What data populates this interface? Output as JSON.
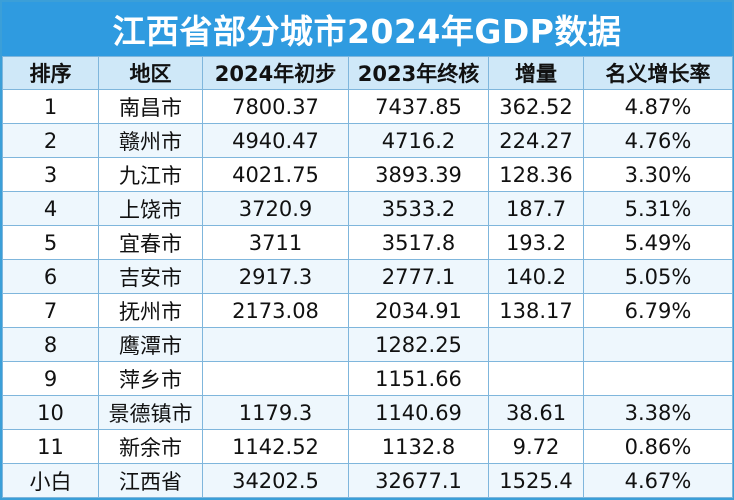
{
  "header": {
    "title": "江西省部分城市2024年GDP数据"
  },
  "table": {
    "columns": [
      "排序",
      "地区",
      "2024年初步",
      "2023年终核",
      "增量",
      "名义增长率"
    ],
    "rows": [
      [
        "1",
        "南昌市",
        "7800.37",
        "7437.85",
        "362.52",
        "4.87%"
      ],
      [
        "2",
        "赣州市",
        "4940.47",
        "4716.2",
        "224.27",
        "4.76%"
      ],
      [
        "3",
        "九江市",
        "4021.75",
        "3893.39",
        "128.36",
        "3.30%"
      ],
      [
        "4",
        "上饶市",
        "3720.9",
        "3533.2",
        "187.7",
        "5.31%"
      ],
      [
        "5",
        "宜春市",
        "3711",
        "3517.8",
        "193.2",
        "5.49%"
      ],
      [
        "6",
        "吉安市",
        "2917.3",
        "2777.1",
        "140.2",
        "5.05%"
      ],
      [
        "7",
        "抚州市",
        "2173.08",
        "2034.91",
        "138.17",
        "6.79%"
      ],
      [
        "8",
        "鹰潭市",
        null,
        "1282.25",
        null,
        null
      ],
      [
        "9",
        "萍乡市",
        null,
        "1151.66",
        null,
        null
      ],
      [
        "10",
        "景德镇市",
        "1179.3",
        "1140.69",
        "38.61",
        "3.38%"
      ],
      [
        "11",
        "新余市",
        "1142.52",
        "1132.8",
        "9.72",
        "0.86%"
      ],
      [
        "小白",
        "江西省",
        "34202.5",
        "32677.1",
        "1525.4",
        "4.67%"
      ]
    ]
  }
}
